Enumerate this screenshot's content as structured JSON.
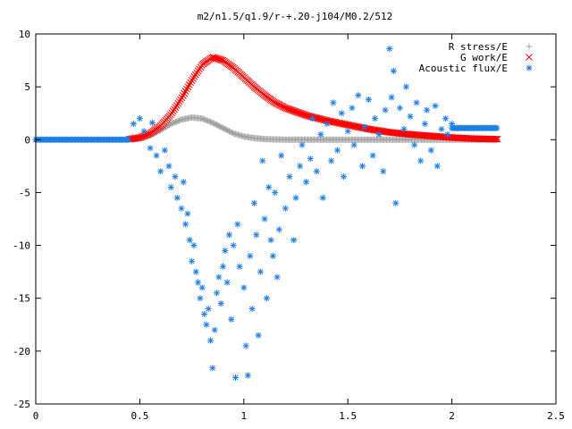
{
  "chart_data": {
    "type": "scatter",
    "title": "m2/n1.5/q1.9/r-+.20-j104/M0.2/512",
    "xlabel": "",
    "ylabel": "",
    "xlim": [
      0,
      2.5
    ],
    "ylim": [
      -25,
      10
    ],
    "xticks": [
      "0",
      "0.5",
      "1",
      "1.5",
      "2",
      "2.5"
    ],
    "yticks": [
      "10",
      "5",
      "0",
      "-5",
      "-10",
      "-15",
      "-20",
      "-25"
    ],
    "legend_placement": "top-right",
    "grid": false,
    "series": [
      {
        "name": "R stress/E",
        "marker": "plus",
        "color": "#a0a0a0",
        "x_range": [
          0.45,
          2.22
        ],
        "points": [
          [
            0.45,
            0.0
          ],
          [
            0.5,
            0.1
          ],
          [
            0.55,
            0.4
          ],
          [
            0.6,
            0.9
          ],
          [
            0.65,
            1.5
          ],
          [
            0.7,
            1.9
          ],
          [
            0.75,
            2.1
          ],
          [
            0.8,
            2.0
          ],
          [
            0.85,
            1.6
          ],
          [
            0.9,
            1.1
          ],
          [
            0.95,
            0.6
          ],
          [
            1.0,
            0.3
          ],
          [
            1.05,
            0.15
          ],
          [
            1.1,
            0.05
          ],
          [
            1.2,
            0.0
          ],
          [
            1.4,
            0.0
          ],
          [
            1.6,
            0.0
          ],
          [
            1.8,
            0.0
          ],
          [
            2.0,
            0.0
          ],
          [
            2.22,
            0.0
          ]
        ]
      },
      {
        "name": "G work/E",
        "marker": "cross",
        "color": "#ff0000",
        "x_range": [
          0.45,
          2.22
        ],
        "points": [
          [
            0.45,
            0.05
          ],
          [
            0.5,
            0.2
          ],
          [
            0.55,
            0.6
          ],
          [
            0.6,
            1.3
          ],
          [
            0.65,
            2.4
          ],
          [
            0.7,
            3.9
          ],
          [
            0.75,
            5.6
          ],
          [
            0.8,
            7.1
          ],
          [
            0.85,
            7.8
          ],
          [
            0.9,
            7.5
          ],
          [
            0.95,
            6.8
          ],
          [
            1.0,
            5.9
          ],
          [
            1.05,
            5.0
          ],
          [
            1.1,
            4.2
          ],
          [
            1.15,
            3.5
          ],
          [
            1.2,
            3.0
          ],
          [
            1.3,
            2.3
          ],
          [
            1.4,
            1.8
          ],
          [
            1.5,
            1.4
          ],
          [
            1.6,
            1.0
          ],
          [
            1.7,
            0.7
          ],
          [
            1.8,
            0.5
          ],
          [
            1.9,
            0.35
          ],
          [
            2.0,
            0.2
          ],
          [
            2.1,
            0.1
          ],
          [
            2.22,
            0.05
          ]
        ]
      },
      {
        "name": "Acoustic flux/E",
        "marker": "star",
        "color": "#1e7fe6",
        "flat_left": [
          0.0,
          0.45,
          0.0
        ],
        "flat_right": [
          2.0,
          2.22,
          1.1
        ],
        "points": [
          [
            0.47,
            1.5
          ],
          [
            0.5,
            2.0
          ],
          [
            0.52,
            0.8
          ],
          [
            0.55,
            -0.8
          ],
          [
            0.56,
            1.6
          ],
          [
            0.58,
            -1.5
          ],
          [
            0.6,
            -3.0
          ],
          [
            0.62,
            -1.0
          ],
          [
            0.64,
            -2.5
          ],
          [
            0.65,
            -4.5
          ],
          [
            0.67,
            -3.5
          ],
          [
            0.68,
            -5.5
          ],
          [
            0.7,
            -6.5
          ],
          [
            0.71,
            -4.0
          ],
          [
            0.72,
            -8.0
          ],
          [
            0.73,
            -7.0
          ],
          [
            0.74,
            -9.5
          ],
          [
            0.75,
            -11.5
          ],
          [
            0.76,
            -10.0
          ],
          [
            0.77,
            -12.5
          ],
          [
            0.78,
            -13.5
          ],
          [
            0.79,
            -15.0
          ],
          [
            0.8,
            -14.0
          ],
          [
            0.81,
            -16.5
          ],
          [
            0.82,
            -17.5
          ],
          [
            0.83,
            -16.0
          ],
          [
            0.84,
            -19.0
          ],
          [
            0.85,
            -21.6
          ],
          [
            0.86,
            -18.0
          ],
          [
            0.87,
            -14.5
          ],
          [
            0.88,
            -13.0
          ],
          [
            0.89,
            -15.5
          ],
          [
            0.9,
            -12.0
          ],
          [
            0.91,
            -10.5
          ],
          [
            0.92,
            -13.5
          ],
          [
            0.93,
            -9.0
          ],
          [
            0.94,
            -17.0
          ],
          [
            0.95,
            -10.0
          ],
          [
            0.96,
            -22.5
          ],
          [
            0.97,
            -8.0
          ],
          [
            0.98,
            -12.0
          ],
          [
            1.0,
            -14.0
          ],
          [
            1.01,
            -19.5
          ],
          [
            1.02,
            -22.3
          ],
          [
            1.03,
            -11.0
          ],
          [
            1.04,
            -16.0
          ],
          [
            1.05,
            -6.0
          ],
          [
            1.06,
            -9.0
          ],
          [
            1.07,
            -18.5
          ],
          [
            1.08,
            -12.5
          ],
          [
            1.09,
            -2.0
          ],
          [
            1.1,
            -7.5
          ],
          [
            1.11,
            -15.0
          ],
          [
            1.12,
            -4.5
          ],
          [
            1.13,
            -9.5
          ],
          [
            1.14,
            -11.0
          ],
          [
            1.15,
            -5.0
          ],
          [
            1.16,
            -13.0
          ],
          [
            1.17,
            -8.5
          ],
          [
            1.18,
            -1.5
          ],
          [
            1.2,
            -6.5
          ],
          [
            1.22,
            -3.5
          ],
          [
            1.24,
            -9.5
          ],
          [
            1.25,
            -5.5
          ],
          [
            1.27,
            -2.5
          ],
          [
            1.28,
            -0.5
          ],
          [
            1.3,
            -4.0
          ],
          [
            1.32,
            -1.8
          ],
          [
            1.33,
            2.0
          ],
          [
            1.35,
            -3.0
          ],
          [
            1.37,
            0.5
          ],
          [
            1.38,
            -5.5
          ],
          [
            1.4,
            1.5
          ],
          [
            1.42,
            -2.0
          ],
          [
            1.43,
            3.5
          ],
          [
            1.45,
            -1.0
          ],
          [
            1.47,
            2.5
          ],
          [
            1.48,
            -3.5
          ],
          [
            1.5,
            0.8
          ],
          [
            1.52,
            3.0
          ],
          [
            1.53,
            -0.5
          ],
          [
            1.55,
            4.2
          ],
          [
            1.57,
            -2.5
          ],
          [
            1.58,
            1.2
          ],
          [
            1.6,
            3.8
          ],
          [
            1.62,
            -1.5
          ],
          [
            1.63,
            2.0
          ],
          [
            1.65,
            0.5
          ],
          [
            1.67,
            -3.0
          ],
          [
            1.68,
            2.8
          ],
          [
            1.7,
            8.6
          ],
          [
            1.71,
            4.0
          ],
          [
            1.72,
            6.5
          ],
          [
            1.73,
            -6.0
          ],
          [
            1.75,
            3.0
          ],
          [
            1.77,
            1.0
          ],
          [
            1.78,
            5.0
          ],
          [
            1.8,
            2.2
          ],
          [
            1.82,
            -0.5
          ],
          [
            1.83,
            3.5
          ],
          [
            1.85,
            -2.0
          ],
          [
            1.87,
            1.5
          ],
          [
            1.88,
            2.8
          ],
          [
            1.9,
            -1.0
          ],
          [
            1.92,
            3.2
          ],
          [
            1.93,
            -2.5
          ],
          [
            1.95,
            1.0
          ],
          [
            1.97,
            2.0
          ],
          [
            1.98,
            0.5
          ],
          [
            2.0,
            1.5
          ]
        ]
      }
    ]
  }
}
